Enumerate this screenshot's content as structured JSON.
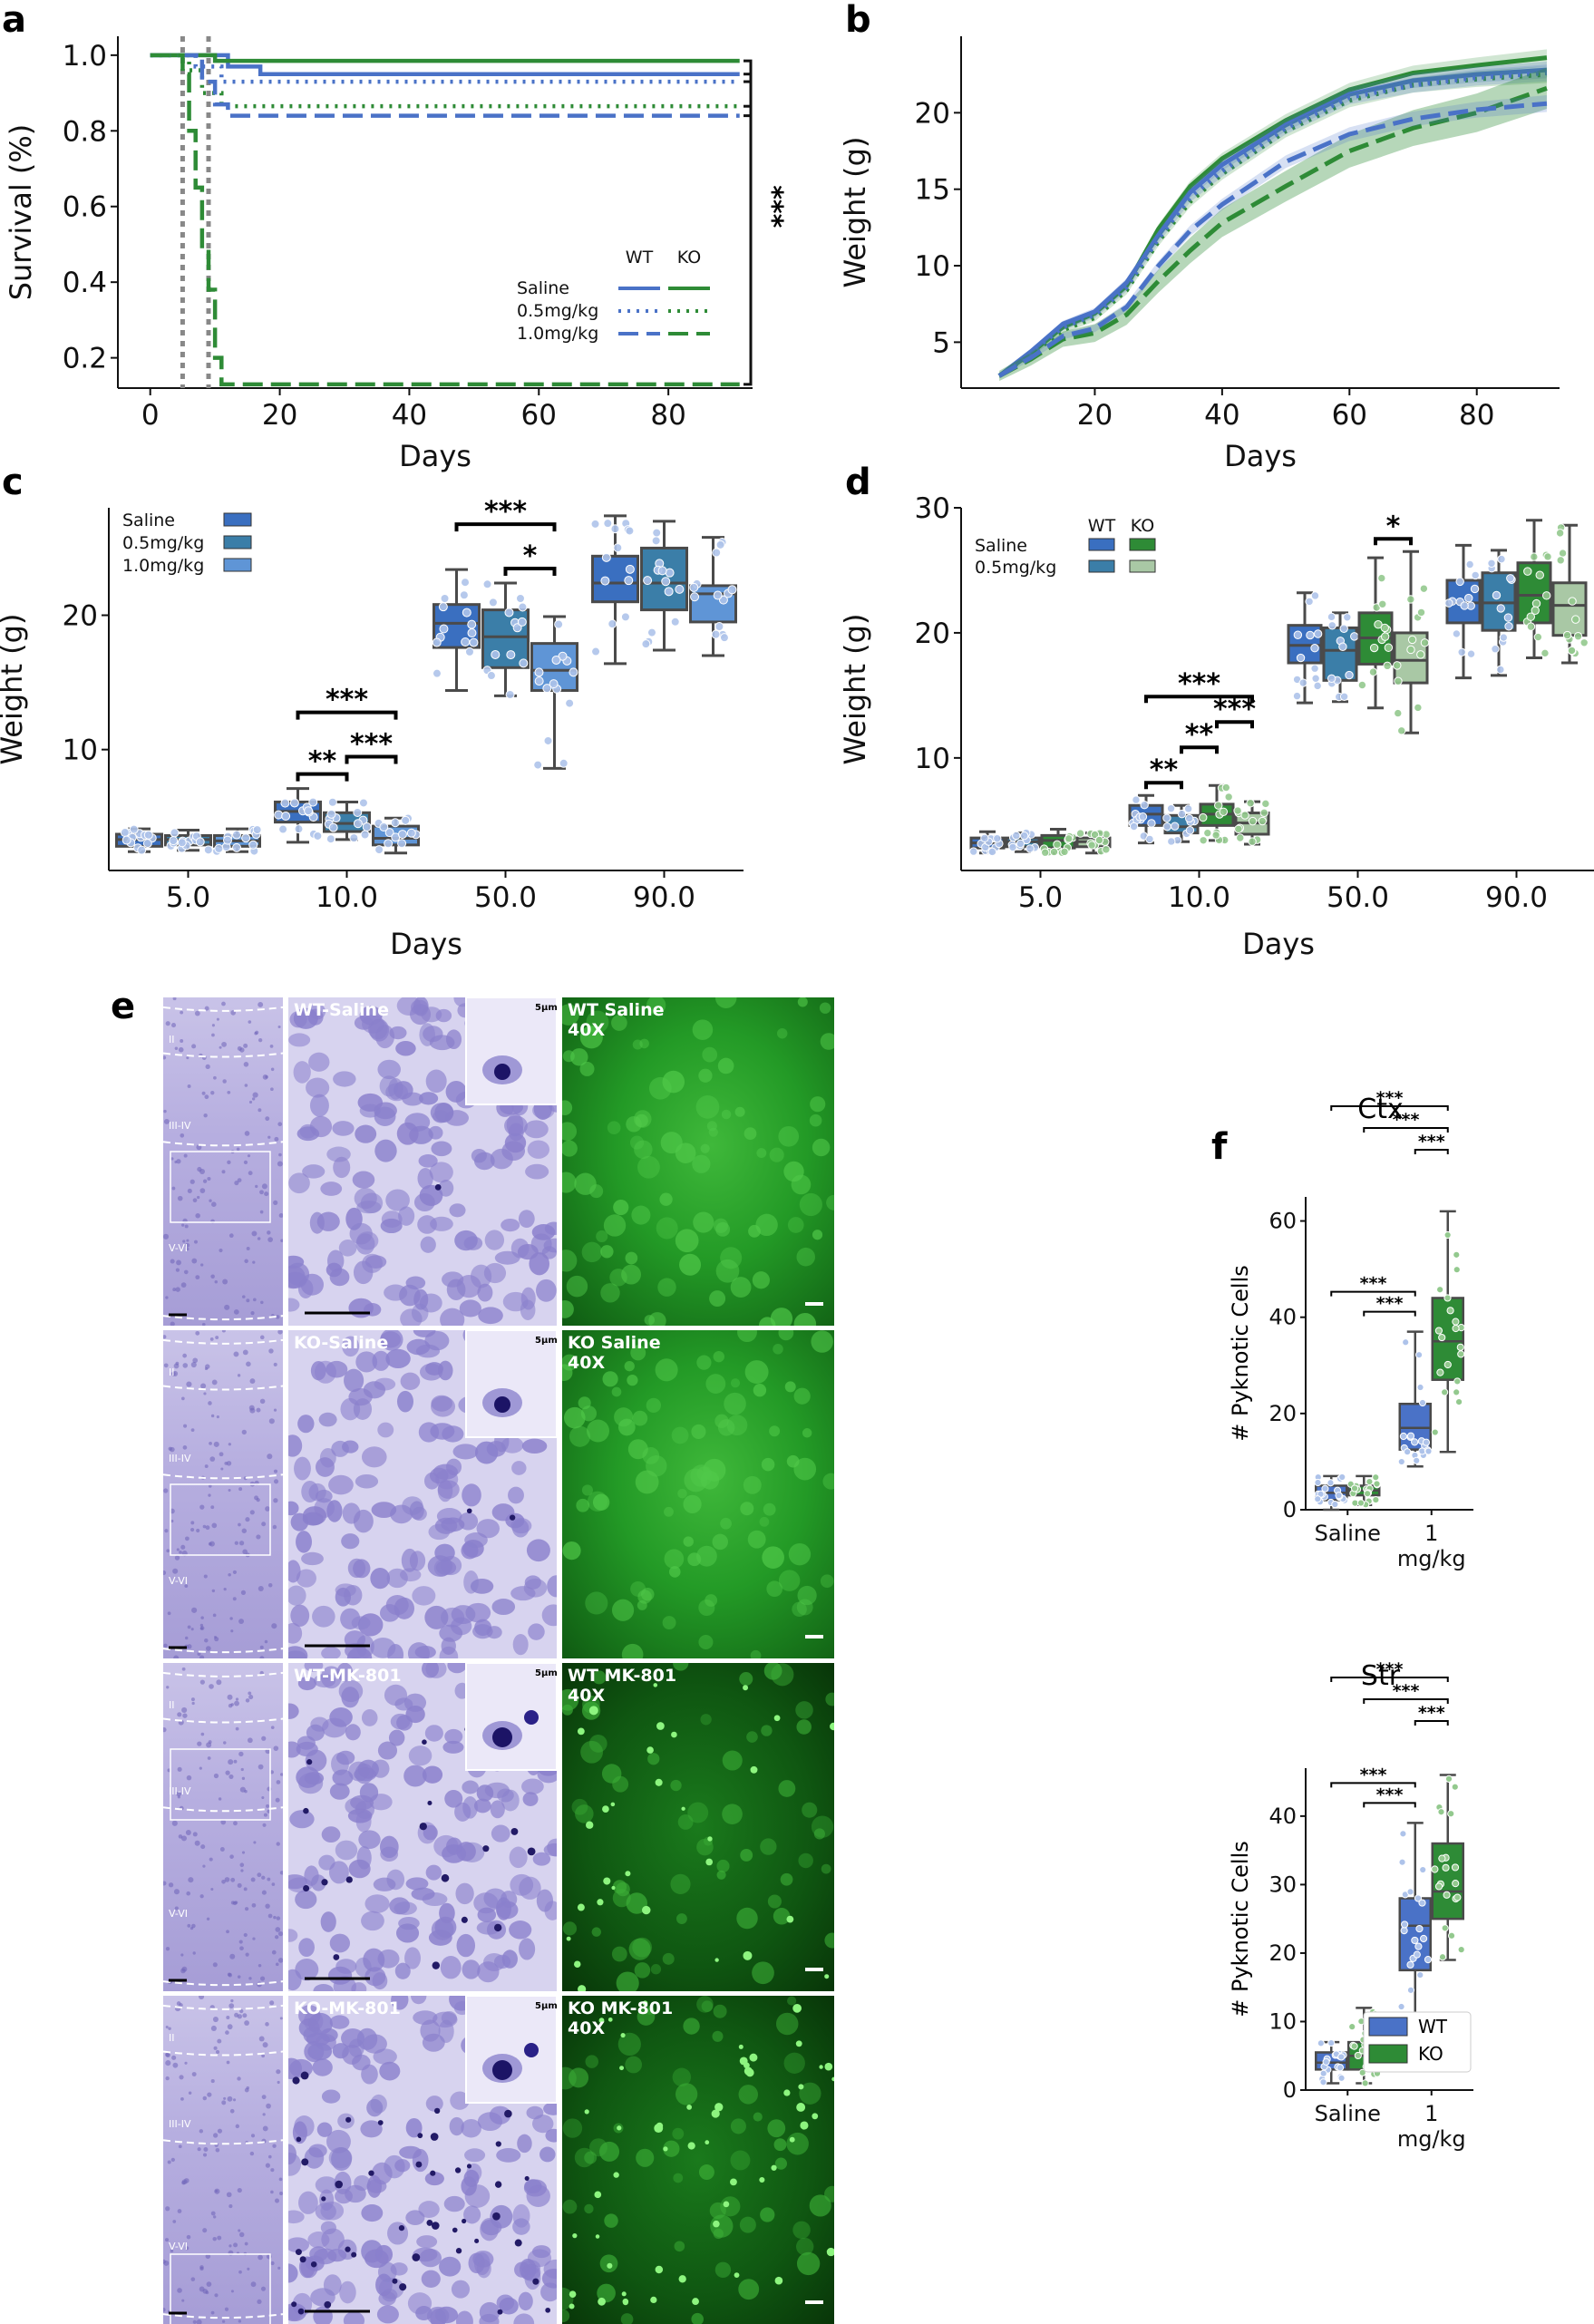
{
  "panel_labels": {
    "a": "a",
    "b": "b",
    "c": "c",
    "d": "d",
    "e": "e",
    "f": "f"
  },
  "colors": {
    "wt": "#4a72c7",
    "ko": "#2e8b36",
    "ko_light": "#a9c8a5",
    "box_gray": "#4a4a4a",
    "wt_point": "#aec3ea",
    "ko_point": "#93c98e",
    "nissl": "#8a80cc",
    "gfp": "#1e9a24"
  },
  "chart_data": [
    {
      "id": "a",
      "type": "line",
      "xlabel": "Days",
      "ylabel": "Survival (%)",
      "xlim": [
        -5,
        93
      ],
      "ylim": [
        0.12,
        1.05
      ],
      "xticks": [
        0,
        20,
        40,
        60,
        80
      ],
      "yticks": [
        0.2,
        0.4,
        0.6,
        0.8,
        1.0
      ],
      "ytick_labels": [
        "0.2",
        "0.4",
        "0.6",
        "0.8",
        "1.0"
      ],
      "vlines": [
        5,
        9
      ],
      "legend": {
        "col_headers": [
          "WT",
          "KO"
        ],
        "rows": [
          "Saline",
          "0.5mg/kg",
          "1.0mg/kg"
        ],
        "placement": "lower-right"
      },
      "significance": "***",
      "series": [
        {
          "genotype": "WT",
          "dose": "Saline",
          "style": "solid",
          "steps": [
            [
              0,
              1.0
            ],
            [
              12,
              0.97
            ],
            [
              17,
              0.95
            ],
            [
              91,
              0.95
            ]
          ]
        },
        {
          "genotype": "KO",
          "dose": "Saline",
          "style": "solid",
          "steps": [
            [
              0,
              1.0
            ],
            [
              10,
              0.985
            ],
            [
              91,
              0.985
            ]
          ]
        },
        {
          "genotype": "WT",
          "dose": "0.5mg/kg",
          "style": "dotted",
          "steps": [
            [
              0,
              1.0
            ],
            [
              7,
              0.97
            ],
            [
              11,
              0.93
            ],
            [
              91,
              0.93
            ]
          ]
        },
        {
          "genotype": "KO",
          "dose": "0.5mg/kg",
          "style": "dotted",
          "steps": [
            [
              0,
              1.0
            ],
            [
              6,
              0.96
            ],
            [
              8,
              0.9
            ],
            [
              11,
              0.865
            ],
            [
              91,
              0.865
            ]
          ]
        },
        {
          "genotype": "WT",
          "dose": "1.0mg/kg",
          "style": "dashed",
          "steps": [
            [
              0,
              1.0
            ],
            [
              8,
              0.93
            ],
            [
              10,
              0.87
            ],
            [
              12,
              0.84
            ],
            [
              91,
              0.84
            ]
          ]
        },
        {
          "genotype": "KO",
          "dose": "1.0mg/kg",
          "style": "dashed",
          "steps": [
            [
              0,
              1.0
            ],
            [
              5,
              0.95
            ],
            [
              6,
              0.8
            ],
            [
              7,
              0.65
            ],
            [
              8,
              0.48
            ],
            [
              9,
              0.38
            ],
            [
              10,
              0.2
            ],
            [
              11,
              0.13
            ],
            [
              91,
              0.13
            ]
          ]
        }
      ]
    },
    {
      "id": "b",
      "type": "line",
      "xlabel": "Days",
      "ylabel": "Weight (g)",
      "xlim": [
        -1,
        93
      ],
      "ylim": [
        2,
        25
      ],
      "xticks": [
        20,
        40,
        60,
        80
      ],
      "yticks": [
        5,
        10,
        15,
        20
      ],
      "series": [
        {
          "genotype": "KO",
          "dose": "Saline",
          "style": "solid",
          "x": [
            5,
            10,
            15,
            20,
            25,
            30,
            35,
            40,
            50,
            60,
            70,
            80,
            91
          ],
          "y": [
            2.8,
            4.3,
            6.0,
            6.9,
            8.7,
            12.4,
            15.2,
            17.0,
            19.5,
            21.5,
            22.6,
            23.1,
            23.6
          ]
        },
        {
          "genotype": "WT",
          "dose": "Saline",
          "style": "solid",
          "x": [
            5,
            10,
            15,
            20,
            25,
            30,
            35,
            40,
            50,
            60,
            70,
            80,
            91
          ],
          "y": [
            2.8,
            4.4,
            6.2,
            7.0,
            8.9,
            12.0,
            14.8,
            16.6,
            19.2,
            21.2,
            22.1,
            22.5,
            22.8
          ]
        },
        {
          "genotype": "KO",
          "dose": "0.5mg/kg",
          "style": "dotted",
          "x": [
            5,
            10,
            15,
            20,
            25,
            30,
            35,
            40,
            50,
            60,
            70,
            80,
            91
          ],
          "y": [
            2.8,
            4.2,
            5.8,
            6.6,
            8.4,
            11.6,
            14.2,
            16.0,
            18.8,
            20.8,
            21.8,
            22.2,
            22.5
          ]
        },
        {
          "genotype": "WT",
          "dose": "0.5mg/kg",
          "style": "dotted",
          "x": [
            5,
            10,
            15,
            20,
            25,
            30,
            35,
            40,
            50,
            60,
            70,
            80,
            91
          ],
          "y": [
            2.8,
            4.3,
            6.0,
            6.8,
            8.6,
            11.8,
            14.5,
            16.2,
            19.0,
            21.0,
            21.8,
            22.3,
            22.6
          ]
        },
        {
          "genotype": "KO",
          "dose": "1.0mg/kg",
          "style": "dashed",
          "band": true,
          "x": [
            5,
            10,
            15,
            20,
            25,
            30,
            35,
            40,
            50,
            60,
            70,
            80,
            91
          ],
          "y": [
            2.8,
            3.9,
            5.2,
            5.6,
            6.8,
            9.0,
            11.0,
            12.8,
            15.2,
            17.5,
            19.0,
            20.0,
            21.6
          ]
        },
        {
          "genotype": "WT",
          "dose": "1.0mg/kg",
          "style": "dashed",
          "x": [
            5,
            10,
            15,
            20,
            25,
            30,
            35,
            40,
            50,
            60,
            70,
            80,
            91
          ],
          "y": [
            2.8,
            4.0,
            5.4,
            5.9,
            7.3,
            10.0,
            12.3,
            14.0,
            16.8,
            18.6,
            19.6,
            20.2,
            20.6
          ]
        }
      ]
    },
    {
      "id": "c",
      "type": "box",
      "xlabel": "Days",
      "ylabel": "Weight (g)",
      "categories": [
        "5.0",
        "10.0",
        "50.0",
        "90.0"
      ],
      "ylim": [
        1,
        28
      ],
      "yticks": [
        10,
        20
      ],
      "legend": {
        "rows": [
          "Saline",
          "0.5mg/kg",
          "1.0mg/kg"
        ]
      },
      "groups": [
        [
          {
            "q1": 2.8,
            "med": 3.3,
            "q3": 3.7,
            "lo": 2.4,
            "hi": 4.1
          },
          {
            "q1": 2.9,
            "med": 3.3,
            "q3": 3.6,
            "lo": 2.5,
            "hi": 4.0
          },
          {
            "q1": 2.8,
            "med": 3.2,
            "q3": 3.6,
            "lo": 2.4,
            "hi": 4.1
          }
        ],
        [
          {
            "q1": 4.6,
            "med": 5.4,
            "q3": 6.1,
            "lo": 3.1,
            "hi": 7.1
          },
          {
            "q1": 3.9,
            "med": 4.5,
            "q3": 5.3,
            "lo": 3.3,
            "hi": 6.1
          },
          {
            "q1": 2.9,
            "med": 3.4,
            "q3": 4.3,
            "lo": 2.3,
            "hi": 4.9
          }
        ],
        [
          {
            "q1": 17.6,
            "med": 19.4,
            "q3": 20.8,
            "lo": 14.4,
            "hi": 23.4
          },
          {
            "q1": 16.1,
            "med": 18.4,
            "q3": 20.4,
            "lo": 14.0,
            "hi": 22.4
          },
          {
            "q1": 14.4,
            "med": 15.9,
            "q3": 17.9,
            "lo": 8.6,
            "hi": 19.9
          }
        ],
        [
          {
            "q1": 21.0,
            "med": 22.4,
            "q3": 24.4,
            "lo": 16.4,
            "hi": 27.4
          },
          {
            "q1": 20.4,
            "med": 22.4,
            "q3": 25.0,
            "lo": 17.4,
            "hi": 27.0
          },
          {
            "q1": 19.5,
            "med": 21.6,
            "q3": 22.2,
            "lo": 17.0,
            "hi": 25.8
          }
        ]
      ],
      "significance": [
        {
          "cat": 1,
          "from": 0,
          "to": 1,
          "label": "**"
        },
        {
          "cat": 1,
          "from": 1,
          "to": 2,
          "label": "***"
        },
        {
          "cat": 1,
          "from": 0,
          "to": 2,
          "label": "***"
        },
        {
          "cat": 2,
          "from": 1,
          "to": 2,
          "label": "*"
        },
        {
          "cat": 2,
          "from": 0,
          "to": 2,
          "label": "***"
        }
      ]
    },
    {
      "id": "d",
      "type": "box",
      "xlabel": "Days",
      "ylabel": "Weight (g)",
      "categories": [
        "5.0",
        "10.0",
        "50.0",
        "90.0"
      ],
      "ylim": [
        1,
        30
      ],
      "yticks": [
        10,
        20,
        30
      ],
      "legend": {
        "col_headers": [
          "WT",
          "KO"
        ],
        "rows": [
          "Saline",
          "0.5mg/kg"
        ]
      },
      "groups": [
        [
          {
            "q1": 2.8,
            "med": 3.2,
            "q3": 3.6,
            "lo": 2.4,
            "hi": 4.1
          },
          {
            "q1": 2.9,
            "med": 3.3,
            "q3": 3.6,
            "lo": 2.5,
            "hi": 4.0
          },
          {
            "q1": 2.8,
            "med": 3.4,
            "q3": 3.8,
            "lo": 2.4,
            "hi": 4.3
          },
          {
            "q1": 2.9,
            "med": 3.3,
            "q3": 3.6,
            "lo": 2.4,
            "hi": 4.0
          }
        ],
        [
          {
            "q1": 4.6,
            "med": 5.5,
            "q3": 6.2,
            "lo": 3.2,
            "hi": 7.0
          },
          {
            "q1": 4.0,
            "med": 4.5,
            "q3": 5.4,
            "lo": 3.3,
            "hi": 6.2
          },
          {
            "q1": 4.6,
            "med": 5.5,
            "q3": 6.3,
            "lo": 3.4,
            "hi": 7.8
          },
          {
            "q1": 3.9,
            "med": 4.8,
            "q3": 5.6,
            "lo": 3.1,
            "hi": 6.5
          }
        ],
        [
          {
            "q1": 17.6,
            "med": 19.0,
            "q3": 20.6,
            "lo": 14.4,
            "hi": 23.2
          },
          {
            "q1": 16.2,
            "med": 18.6,
            "q3": 20.4,
            "lo": 14.5,
            "hi": 21.6
          },
          {
            "q1": 17.5,
            "med": 19.6,
            "q3": 21.6,
            "lo": 14.0,
            "hi": 26.0
          },
          {
            "q1": 16.0,
            "med": 17.8,
            "q3": 20.0,
            "lo": 12.0,
            "hi": 26.5
          }
        ],
        [
          {
            "q1": 20.8,
            "med": 22.4,
            "q3": 24.2,
            "lo": 16.4,
            "hi": 27.0
          },
          {
            "q1": 20.2,
            "med": 22.4,
            "q3": 24.8,
            "lo": 16.6,
            "hi": 26.6
          },
          {
            "q1": 20.8,
            "med": 23.0,
            "q3": 25.6,
            "lo": 18.0,
            "hi": 29.0
          },
          {
            "q1": 19.8,
            "med": 22.2,
            "q3": 24.0,
            "lo": 17.6,
            "hi": 28.6
          }
        ]
      ],
      "significance": [
        {
          "cat": 1,
          "from": 0,
          "to": 1,
          "label": "**"
        },
        {
          "cat": 1,
          "from": 1,
          "to": 2,
          "label": "**"
        },
        {
          "cat": 1,
          "from": 2,
          "to": 3,
          "label": "***"
        },
        {
          "cat": 1,
          "from": 0,
          "to": 3,
          "label": "***"
        },
        {
          "cat": 2,
          "from": 2,
          "to": 3,
          "label": "*"
        }
      ]
    },
    {
      "id": "f-ctx",
      "type": "box",
      "title": "Ctx",
      "ylabel": "# Pyknotic Cells",
      "categories": [
        "Saline",
        "1\nmg/kg"
      ],
      "ylim": [
        0,
        65
      ],
      "yticks": [
        0,
        20,
        40,
        60
      ],
      "groups": [
        [
          {
            "q1": 2,
            "med": 3.5,
            "q3": 5,
            "lo": 0,
            "hi": 7
          },
          {
            "q1": 3,
            "med": 4,
            "q3": 5,
            "lo": 1,
            "hi": 7
          }
        ],
        [
          {
            "q1": 12.5,
            "med": 17,
            "q3": 22,
            "lo": 9,
            "hi": 37
          },
          {
            "q1": 27,
            "med": 35,
            "q3": 44,
            "lo": 12,
            "hi": 62
          }
        ]
      ],
      "significance": [
        {
          "pair": [
            [
              0,
              1
            ],
            [
              1,
              0
            ]
          ],
          "label": "***"
        },
        {
          "pair": [
            [
              0,
              1
            ],
            [
              1,
              1
            ]
          ],
          "label": "***"
        },
        {
          "pair": [
            [
              0,
              0
            ],
            [
              1,
              0
            ]
          ],
          "label": "***"
        },
        {
          "pair": [
            [
              0,
              0
            ],
            [
              1,
              1
            ]
          ],
          "label": "***"
        },
        {
          "pair": [
            [
              1,
              0
            ],
            [
              1,
              1
            ]
          ],
          "label": "***"
        }
      ]
    },
    {
      "id": "f-str",
      "type": "box",
      "title": "Str",
      "ylabel": "# Pyknotic Cells",
      "categories": [
        "Saline",
        "1\nmg/kg"
      ],
      "ylim": [
        0,
        47
      ],
      "yticks": [
        0,
        10,
        20,
        30,
        40
      ],
      "legend": {
        "rows": [
          "WT",
          "KO"
        ]
      },
      "groups": [
        [
          {
            "q1": 3,
            "med": 4,
            "q3": 5.5,
            "lo": 1,
            "hi": 7
          },
          {
            "q1": 3,
            "med": 5,
            "q3": 7,
            "lo": 1,
            "hi": 12
          }
        ],
        [
          {
            "q1": 17.5,
            "med": 24,
            "q3": 28,
            "lo": 10,
            "hi": 39
          },
          {
            "q1": 25,
            "med": 29,
            "q3": 36,
            "lo": 19,
            "hi": 46
          }
        ]
      ],
      "significance": [
        {
          "pair": [
            [
              0,
              1
            ],
            [
              1,
              0
            ]
          ],
          "label": "***"
        },
        {
          "pair": [
            [
              0,
              1
            ],
            [
              1,
              1
            ]
          ],
          "label": "***"
        },
        {
          "pair": [
            [
              0,
              0
            ],
            [
              1,
              0
            ]
          ],
          "label": "***"
        },
        {
          "pair": [
            [
              0,
              0
            ],
            [
              1,
              1
            ]
          ],
          "label": "***"
        },
        {
          "pair": [
            [
              1,
              0
            ],
            [
              1,
              1
            ]
          ],
          "label": "***"
        }
      ]
    }
  ],
  "micrographs": {
    "rows": [
      {
        "nissl_label": "WT-Saline",
        "gfp_label": "WT Saline\n40X",
        "inset_scale": "5µm",
        "layers": [
          "II",
          "III-IV",
          "V-VI"
        ],
        "density": "low"
      },
      {
        "nissl_label": "KO-Saline",
        "gfp_label": "KO Saline\n40X",
        "inset_scale": "5µm",
        "layers": [
          "II",
          "III-IV",
          "V-VI"
        ],
        "density": "low"
      },
      {
        "nissl_label": "WT-MK-801",
        "gfp_label": "WT MK-801\n40X",
        "inset_scale": "5µm",
        "layers": [
          "II",
          "III-IV",
          "V-VI"
        ],
        "density": "mid"
      },
      {
        "nissl_label": "KO-MK-801",
        "gfp_label": "KO MK-801\n40X",
        "inset_scale": "5µm",
        "layers": [
          "II",
          "III-IV",
          "V-VI"
        ],
        "density": "high"
      }
    ]
  }
}
